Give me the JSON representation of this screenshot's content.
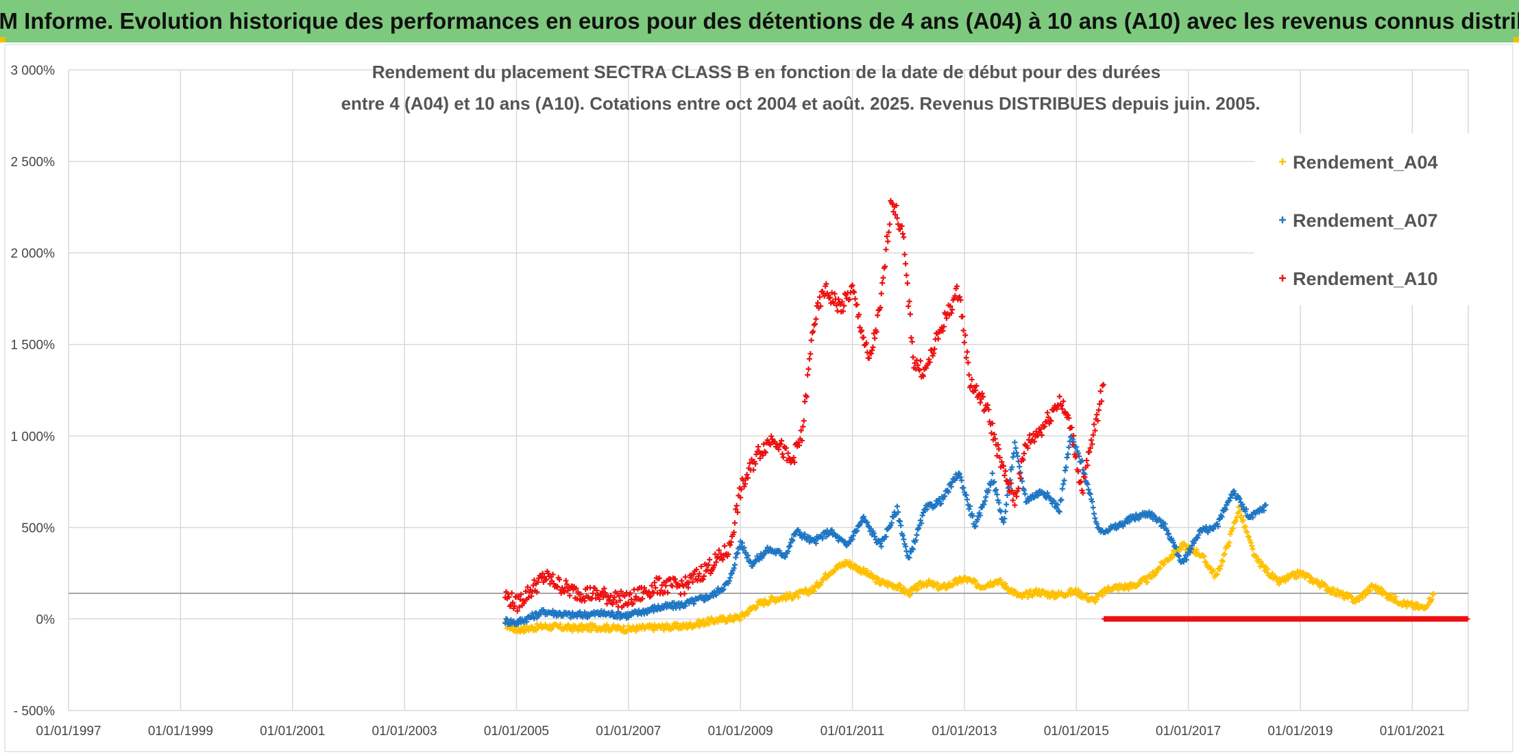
{
  "header": {
    "title": "ADAM Informe. Evolution historique des performances en euros pour des détentions de 4 ans (A04) à 10 ans (A10) avec les revenus connus distribués"
  },
  "chart_data": {
    "type": "scatter",
    "title_line1": "Rendement du placement SECTRA CLASS B en fonction de la date de début pour des durées",
    "title_line2": "entre 4 (A04) et 10 ans (A10). Cotations entre oct 2004 et août. 2025. Revenus DISTRIBUES depuis juin. 2005.",
    "xlabel": "",
    "ylabel": "",
    "xlim": [
      1997.0,
      2022.0
    ],
    "ylim": [
      -500,
      3000
    ],
    "grid": true,
    "legend_position": "top-right",
    "y_ticks": [
      "3 000%",
      "2 500%",
      "2 000%",
      "1 500%",
      "1 000%",
      "500%",
      "0%",
      "- 500%"
    ],
    "y_tick_values": [
      3000,
      2500,
      2000,
      1500,
      1000,
      500,
      0,
      -500
    ],
    "x_ticks": [
      "01/01/1997",
      "01/01/1999",
      "01/01/2001",
      "01/01/2003",
      "01/01/2005",
      "01/01/2007",
      "01/01/2009",
      "01/01/2011",
      "01/01/2013",
      "01/01/2015",
      "01/01/2017",
      "01/01/2019",
      "01/01/2021"
    ],
    "x_tick_values": [
      1997,
      1999,
      2001,
      2003,
      2005,
      2007,
      2009,
      2011,
      2013,
      2015,
      2017,
      2019,
      2021
    ],
    "reference_line_y": 140,
    "series": [
      {
        "name": "Rendement_A04",
        "color": "#ffc000",
        "x": [
          2004.8,
          2005.0,
          2005.5,
          2006.0,
          2006.5,
          2007.0,
          2007.5,
          2008.0,
          2008.5,
          2009.0,
          2009.3,
          2009.6,
          2010.0,
          2010.3,
          2010.6,
          2010.9,
          2011.2,
          2011.5,
          2011.8,
          2012.0,
          2012.3,
          2012.6,
          2013.0,
          2013.3,
          2013.6,
          2014.0,
          2014.3,
          2014.6,
          2015.0,
          2015.3,
          2015.6,
          2016.0,
          2016.3,
          2016.6,
          2016.9,
          2017.2,
          2017.5,
          2017.7,
          2017.9,
          2018.2,
          2018.6,
          2019.0,
          2019.3,
          2019.6,
          2020.0,
          2020.3,
          2020.6,
          2020.9,
          2021.2,
          2021.4
        ],
        "y": [
          -30,
          -60,
          -40,
          -50,
          -45,
          -55,
          -45,
          -40,
          -10,
          10,
          80,
          110,
          130,
          160,
          260,
          310,
          260,
          200,
          180,
          140,
          200,
          170,
          220,
          180,
          210,
          120,
          150,
          130,
          150,
          100,
          170,
          180,
          220,
          320,
          400,
          360,
          230,
          400,
          600,
          330,
          200,
          250,
          200,
          150,
          100,
          180,
          120,
          80,
          60,
          140
        ]
      },
      {
        "name": "Rendement_A07",
        "color": "#1f77c4",
        "x": [
          2004.8,
          2005.0,
          2005.5,
          2006.0,
          2006.5,
          2007.0,
          2007.5,
          2008.0,
          2008.5,
          2008.8,
          2009.0,
          2009.2,
          2009.5,
          2009.8,
          2010.0,
          2010.3,
          2010.6,
          2010.9,
          2011.2,
          2011.5,
          2011.8,
          2012.0,
          2012.3,
          2012.6,
          2012.9,
          2013.2,
          2013.5,
          2013.7,
          2013.9,
          2014.1,
          2014.4,
          2014.7,
          2014.9,
          2015.1,
          2015.4,
          2015.7,
          2016.0,
          2016.3,
          2016.6,
          2016.9,
          2017.2,
          2017.5,
          2017.8,
          2018.1,
          2018.4
        ],
        "y": [
          -10,
          -20,
          40,
          20,
          30,
          20,
          60,
          80,
          130,
          200,
          420,
          300,
          380,
          350,
          480,
          420,
          480,
          400,
          550,
          400,
          600,
          320,
          600,
          650,
          800,
          500,
          780,
          520,
          950,
          650,
          700,
          600,
          1000,
          850,
          480,
          500,
          550,
          580,
          500,
          300,
          480,
          500,
          700,
          550,
          620
        ]
      },
      {
        "name": "Rendement_A10",
        "color": "#ee1111",
        "x": [
          2004.8,
          2005.0,
          2005.5,
          2006.0,
          2006.5,
          2007.0,
          2007.5,
          2008.0,
          2008.5,
          2008.8,
          2009.0,
          2009.3,
          2009.6,
          2009.9,
          2010.1,
          2010.3,
          2010.5,
          2010.8,
          2011.0,
          2011.3,
          2011.5,
          2011.7,
          2011.9,
          2012.1,
          2012.3,
          2012.6,
          2012.9,
          2013.1,
          2013.4,
          2013.7,
          2013.9,
          2014.1,
          2014.4,
          2014.7,
          2014.9,
          2015.1,
          2015.3,
          2015.5
        ],
        "y": [
          130,
          80,
          230,
          150,
          130,
          100,
          180,
          180,
          300,
          380,
          700,
          900,
          1000,
          850,
          1000,
          1600,
          1800,
          1700,
          1800,
          1400,
          1700,
          2300,
          2100,
          1400,
          1350,
          1600,
          1800,
          1300,
          1150,
          800,
          650,
          950,
          1050,
          1200,
          1050,
          700,
          1000,
          1300
        ]
      },
      {
        "name": "",
        "color": "#ee1111",
        "x": [
          2015.5,
          2016.0,
          2017.0,
          2018.0,
          2019.0,
          2020.0,
          2021.0,
          2022.0
        ],
        "y": [
          0,
          0,
          0,
          0,
          0,
          0,
          0,
          0
        ]
      }
    ]
  }
}
